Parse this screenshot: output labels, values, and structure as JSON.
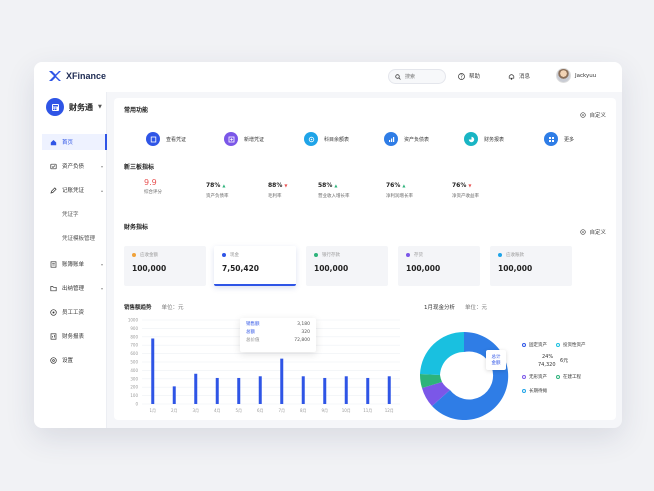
{
  "app": {
    "brand": "XFinance",
    "name": "财务通"
  },
  "topbar": {
    "search_placeholder": "搜索",
    "help": "帮助",
    "messages": "消息",
    "user": "Jackyuu"
  },
  "sidebar": {
    "items": [
      {
        "label": "首页",
        "icon": "home-icon",
        "active": true
      },
      {
        "label": "资产负债",
        "icon": "asset-icon"
      },
      {
        "label": "记账凭证",
        "icon": "edit-icon"
      },
      {
        "label": "凭证字",
        "sub": true
      },
      {
        "label": "凭证模板管理",
        "sub": true
      },
      {
        "label": "账簿账单",
        "icon": "book-icon"
      },
      {
        "label": "出纳管理",
        "icon": "folder-icon"
      },
      {
        "label": "员工工资",
        "icon": "salary-icon"
      },
      {
        "label": "财务报表",
        "icon": "report-icon"
      },
      {
        "label": "设置",
        "icon": "settings-icon"
      }
    ]
  },
  "functions": {
    "title": "常用功能",
    "customize": "自定义",
    "items": [
      {
        "label": "查看凭证",
        "icon": "voucher-icon",
        "color": "#2f55e6"
      },
      {
        "label": "新增凭证",
        "icon": "add-voucher-icon",
        "color": "#7b57e8"
      },
      {
        "label": "科目余额表",
        "icon": "balance-icon",
        "color": "#1fa4e8"
      },
      {
        "label": "资产负债表",
        "icon": "asset-sheet-icon",
        "color": "#2f7de6"
      },
      {
        "label": "财务报表",
        "icon": "chart-icon",
        "color": "#19b5c4"
      },
      {
        "label": "更多",
        "icon": "more-icon",
        "color": "#2f7de6"
      }
    ]
  },
  "metrics": {
    "title": "新三板指标",
    "items": [
      {
        "value": "9.9",
        "label": "综合评分",
        "trend": ""
      },
      {
        "value": "78%",
        "label": "资产负债率",
        "trend": "up"
      },
      {
        "value": "88%",
        "label": "毛利率",
        "trend": "down"
      },
      {
        "value": "58%",
        "label": "营业收入增长率",
        "trend": "up"
      },
      {
        "value": "76%",
        "label": "净利润增长率",
        "trend": "up"
      },
      {
        "value": "76%",
        "label": "净资产收益率",
        "trend": "down"
      }
    ]
  },
  "finance": {
    "title": "财务指标",
    "customize": "自定义",
    "cards": [
      {
        "label": "应收金额",
        "value": "100,000",
        "color": "#f0a23a"
      },
      {
        "label": "现金",
        "value": "7,50,420",
        "color": "#2f55e6",
        "selected": true
      },
      {
        "label": "银行存款",
        "value": "100,000",
        "color": "#2db37b"
      },
      {
        "label": "存货",
        "value": "100,000",
        "color": "#7b57e8"
      },
      {
        "label": "应收账款",
        "value": "100,000",
        "color": "#1fa4e8"
      }
    ]
  },
  "sales_chart": {
    "title": "销售额趋势",
    "unit": "单位：元",
    "tooltip": [
      {
        "k": "销售额",
        "v": "3,180"
      },
      {
        "k": "总额",
        "v": "320"
      },
      {
        "k": "总价值",
        "v": "72,800"
      }
    ]
  },
  "pie": {
    "title": "1月现金分析",
    "unit": "单位：元",
    "center_label": "总计\n金额",
    "pct": "24%",
    "amount": "74,320",
    "amount_unit": "6元",
    "legend": [
      {
        "label": "固定资产",
        "color": "#2f55e6"
      },
      {
        "label": "投资性资产",
        "color": "#19c0e0"
      },
      {
        "label": "无形资产",
        "color": "#7b57e8"
      },
      {
        "label": "在建工程",
        "color": "#2db37b"
      },
      {
        "label": "长期待摊",
        "color": "#1fa4e8"
      }
    ]
  },
  "chart_data": {
    "type": "bar",
    "categories": [
      "1月",
      "2月",
      "3月",
      "4月",
      "5月",
      "6月",
      "7月",
      "8月",
      "9月",
      "10月",
      "11月",
      "12月"
    ],
    "values": [
      780,
      210,
      360,
      310,
      310,
      330,
      540,
      330,
      310,
      330,
      310,
      330
    ],
    "ylim": [
      0,
      1000
    ],
    "yticks": [
      0,
      100,
      200,
      300,
      400,
      500,
      600,
      700,
      800,
      900,
      1000
    ],
    "grid": true,
    "color": "#2f55e6"
  }
}
